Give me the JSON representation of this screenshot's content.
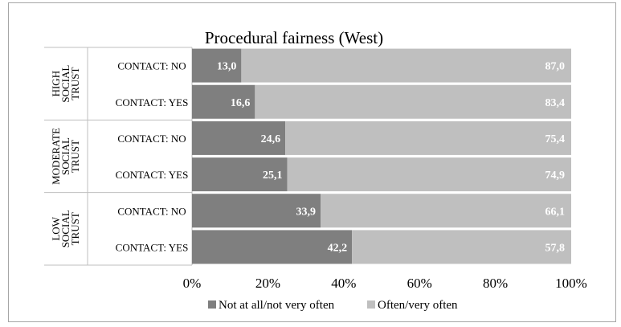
{
  "chart_data": {
    "type": "bar",
    "orientation": "horizontal",
    "stacked": true,
    "percent_stacked": true,
    "title": "Procedural fairness (West)",
    "groups": [
      {
        "label": [
          "HIGH",
          "SOCIAL",
          "TRUST"
        ],
        "categories": [
          "CONTACT: NO",
          "CONTACT: YES"
        ]
      },
      {
        "label": [
          "MODERATE",
          "SOCIAL",
          "TRUST"
        ],
        "categories": [
          "CONTACT: NO",
          "CONTACT: YES"
        ]
      },
      {
        "label": [
          "LOW",
          "SOCIAL",
          "TRUST"
        ],
        "categories": [
          "CONTACT: NO",
          "CONTACT: YES"
        ]
      }
    ],
    "series": [
      {
        "name": "Not at all/not very often",
        "color": "#7f7f7f",
        "values": [
          13.0,
          16.6,
          24.6,
          25.1,
          33.9,
          42.2
        ],
        "labels": [
          "13,0",
          "16,6",
          "24,6",
          "25,1",
          "33,9",
          "42,2"
        ]
      },
      {
        "name": "Often/very often",
        "color": "#bfbfbf",
        "values": [
          87.0,
          83.4,
          75.4,
          74.9,
          66.1,
          57.8
        ],
        "labels": [
          "87,0",
          "83,4",
          "75,4",
          "74,9",
          "66,1",
          "57,8"
        ]
      }
    ],
    "xlim": [
      0,
      100
    ],
    "xticks": [
      "0%",
      "20%",
      "40%",
      "60%",
      "80%",
      "100%"
    ],
    "legend_position": "bottom",
    "grid": false
  }
}
